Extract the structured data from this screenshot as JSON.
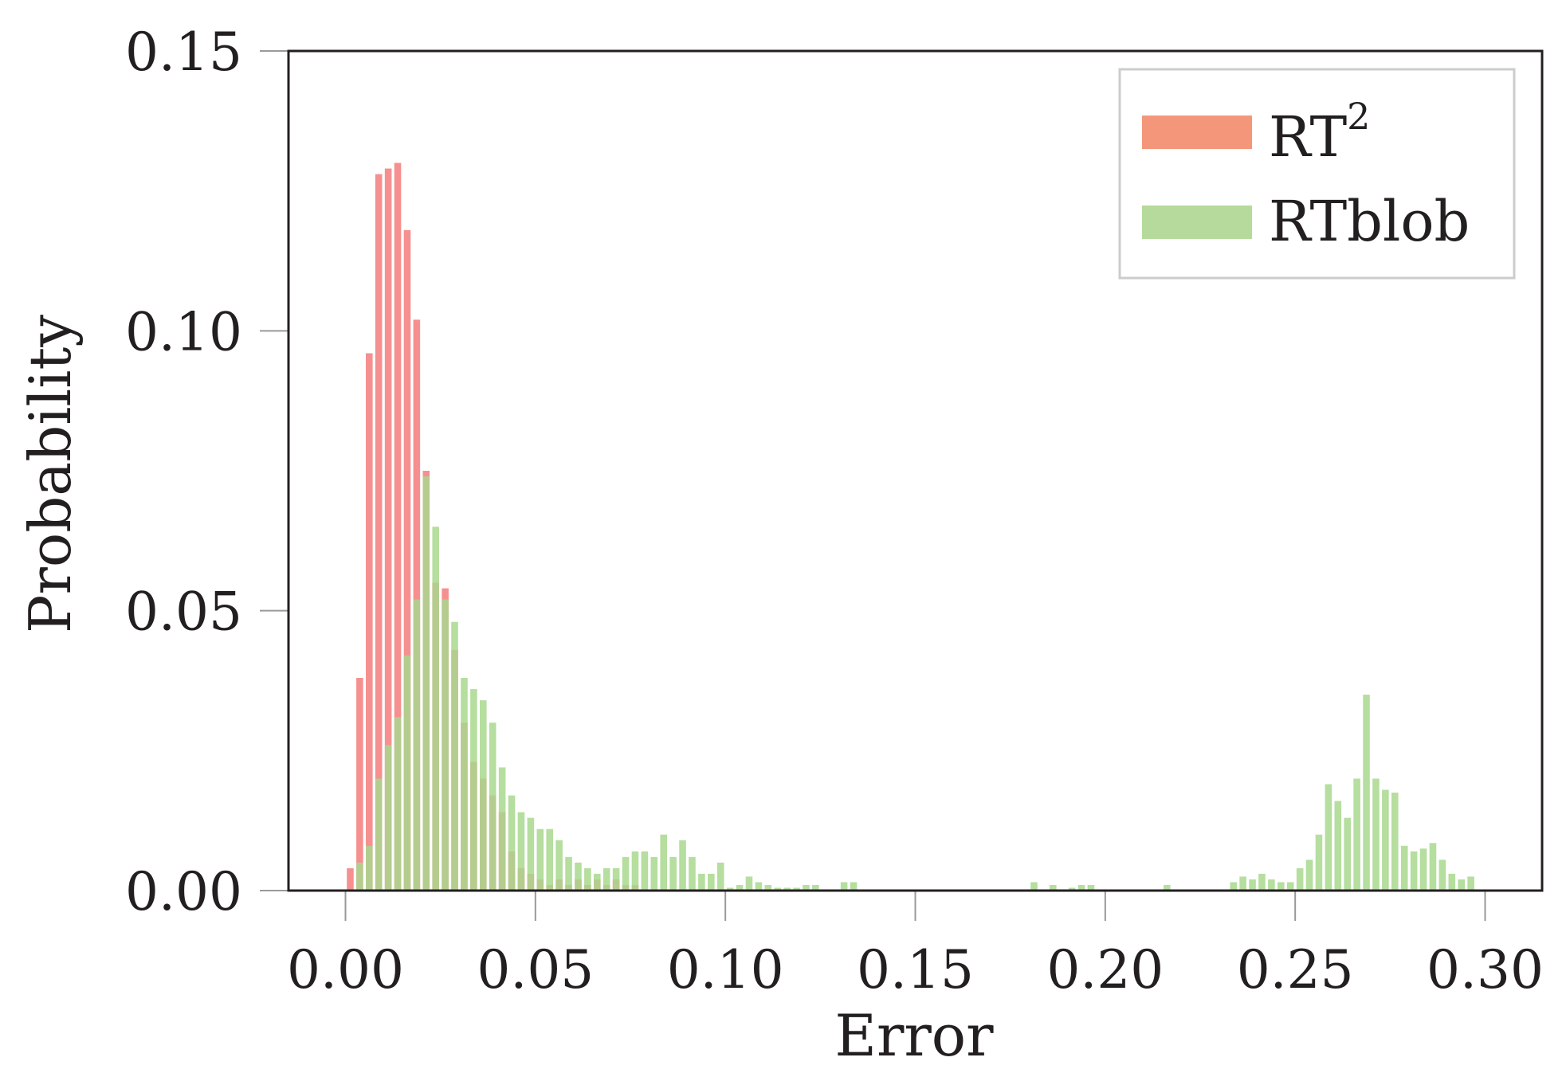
{
  "chart_data": {
    "type": "bar",
    "xlabel": "Error",
    "ylabel": "Probability",
    "xlim": [
      -0.015,
      0.315
    ],
    "ylim": [
      0,
      0.15
    ],
    "x_ticks": [
      "0.00",
      "0.05",
      "0.10",
      "0.15",
      "0.20",
      "0.25",
      "0.30"
    ],
    "y_ticks": [
      "0.00",
      "0.05",
      "0.10",
      "0.15"
    ],
    "bin_width": 0.0025,
    "legend_position": "top-right",
    "series": [
      {
        "name": "RT",
        "name_superscript": "2",
        "color": "#f47c7c",
        "legend_color": "#f4967a",
        "opacity": 0.85,
        "x": [
          0.00125,
          0.00375,
          0.00625,
          0.00875,
          0.01125,
          0.01375,
          0.01625,
          0.01875,
          0.02125,
          0.02375,
          0.02625,
          0.02875,
          0.03125,
          0.03375,
          0.03625,
          0.03875,
          0.04125,
          0.04375,
          0.04625,
          0.04875,
          0.05125,
          0.05375,
          0.05625,
          0.05875,
          0.06125,
          0.06375,
          0.06625,
          0.06875,
          0.07125,
          0.07375,
          0.07625
        ],
        "values": [
          0.004,
          0.038,
          0.096,
          0.128,
          0.129,
          0.13,
          0.118,
          0.102,
          0.075,
          0.055,
          0.054,
          0.043,
          0.03,
          0.023,
          0.02,
          0.017,
          0.014,
          0.007,
          0.004,
          0.003,
          0.002,
          0.001,
          0.002,
          0.001,
          0.002,
          0.001,
          0.002,
          0.001,
          0.002,
          0.001,
          0.001
        ]
      },
      {
        "name": "RTblob",
        "color": "#a8d88e",
        "legend_color": "#b5da9c",
        "opacity": 0.85,
        "x": [
          0.00125,
          0.00375,
          0.00625,
          0.00875,
          0.01125,
          0.01375,
          0.01625,
          0.01875,
          0.02125,
          0.02375,
          0.02625,
          0.02875,
          0.03125,
          0.03375,
          0.03625,
          0.03875,
          0.04125,
          0.04375,
          0.04625,
          0.04875,
          0.05125,
          0.05375,
          0.05625,
          0.05875,
          0.06125,
          0.06375,
          0.06625,
          0.06875,
          0.07125,
          0.07375,
          0.07625,
          0.07875,
          0.08125,
          0.08375,
          0.08625,
          0.08875,
          0.09125,
          0.09375,
          0.09625,
          0.09875,
          0.10125,
          0.10375,
          0.10625,
          0.10875,
          0.11125,
          0.11375,
          0.11625,
          0.11875,
          0.12125,
          0.12375,
          0.13125,
          0.13375,
          0.18125,
          0.18625,
          0.19125,
          0.19375,
          0.19625,
          0.21625,
          0.23375,
          0.23625,
          0.23875,
          0.24125,
          0.24375,
          0.24625,
          0.24875,
          0.25125,
          0.25375,
          0.25625,
          0.25875,
          0.26125,
          0.26375,
          0.26625,
          0.26875,
          0.27125,
          0.27375,
          0.27625,
          0.27875,
          0.28125,
          0.28375,
          0.28625,
          0.28875,
          0.29125,
          0.29375,
          0.29625
        ],
        "values": [
          0.0,
          0.005,
          0.008,
          0.02,
          0.026,
          0.031,
          0.042,
          0.052,
          0.074,
          0.065,
          0.052,
          0.048,
          0.038,
          0.036,
          0.034,
          0.03,
          0.022,
          0.017,
          0.014,
          0.013,
          0.011,
          0.011,
          0.009,
          0.006,
          0.005,
          0.004,
          0.003,
          0.004,
          0.004,
          0.006,
          0.007,
          0.007,
          0.006,
          0.01,
          0.006,
          0.009,
          0.006,
          0.003,
          0.003,
          0.005,
          0.0005,
          0.001,
          0.0025,
          0.0015,
          0.001,
          0.0005,
          0.0005,
          0.0005,
          0.001,
          0.001,
          0.0015,
          0.0015,
          0.0015,
          0.001,
          0.0005,
          0.001,
          0.001,
          0.001,
          0.0015,
          0.0025,
          0.002,
          0.003,
          0.002,
          0.0015,
          0.0015,
          0.004,
          0.0055,
          0.01,
          0.019,
          0.016,
          0.013,
          0.02,
          0.035,
          0.02,
          0.018,
          0.0175,
          0.008,
          0.007,
          0.0075,
          0.0085,
          0.0055,
          0.003,
          0.002,
          0.0025
        ]
      }
    ]
  }
}
